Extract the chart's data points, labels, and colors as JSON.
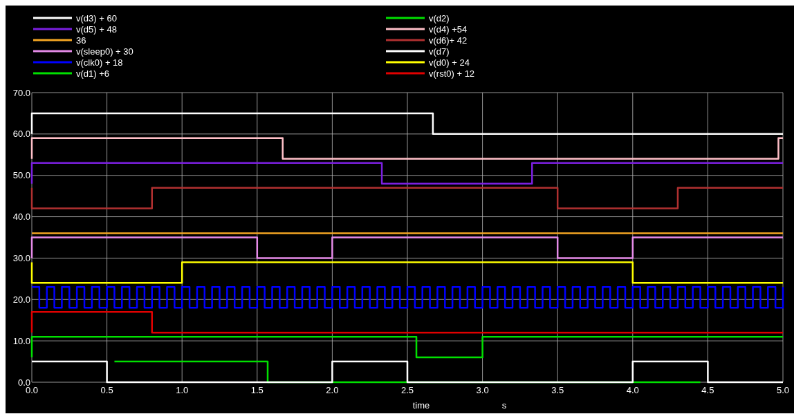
{
  "chart_data": {
    "type": "step",
    "xlabel": "time",
    "annotations": [
      "s"
    ],
    "xlim": [
      0,
      5
    ],
    "xticks": [
      {
        "value": 0,
        "label": "0.0"
      },
      {
        "value": 0.5,
        "label": "0.5"
      },
      {
        "value": 1,
        "label": "1.0"
      },
      {
        "value": 1.5,
        "label": "1.5"
      },
      {
        "value": 2,
        "label": "2.0"
      },
      {
        "value": 2.5,
        "label": "2.5"
      },
      {
        "value": 3,
        "label": "3.0"
      },
      {
        "value": 3.5,
        "label": "3.5"
      },
      {
        "value": 4,
        "label": "4.0"
      },
      {
        "value": 4.5,
        "label": "4.5"
      },
      {
        "value": 5,
        "label": "5.0"
      }
    ],
    "ylim": [
      0,
      70
    ],
    "yticks": [
      {
        "value": 0,
        "label": "0.0"
      },
      {
        "value": 10,
        "label": "10.0"
      },
      {
        "value": 20,
        "label": "20.0"
      },
      {
        "value": 30,
        "label": "30.0"
      },
      {
        "value": 40,
        "label": "40.0"
      },
      {
        "value": 50,
        "label": "50.0"
      },
      {
        "value": 60,
        "label": "60.0"
      },
      {
        "value": 70,
        "label": "70.0"
      }
    ],
    "grid": true,
    "legend": "top",
    "marker": "none",
    "line_style": "solid",
    "series": [
      {
        "name": "v(d3) + 60",
        "color": "#ffffff",
        "x": [
          0,
          0,
          2.67,
          5
        ],
        "values": [
          60,
          65,
          60,
          60
        ]
      },
      {
        "name": "v(d5) + 48",
        "color": "#7b1fe0",
        "x": [
          0,
          0,
          2.33,
          3.33,
          5
        ],
        "values": [
          48,
          53,
          48,
          53,
          53
        ]
      },
      {
        "name": "36",
        "color": "#f5a623",
        "x": [
          0,
          5
        ],
        "values": [
          36,
          36
        ]
      },
      {
        "name": "v(sleep0) + 30",
        "color": "#e58be8",
        "x": [
          0,
          0,
          1.5,
          2,
          3.5,
          4,
          5
        ],
        "values": [
          30,
          35,
          30,
          35,
          30,
          35,
          35
        ]
      },
      {
        "name": "v(clk0) + 18",
        "color": "#0000ff",
        "x": [
          0,
          0.05,
          0.1,
          0.15,
          0.2,
          0.25,
          0.3,
          0.35,
          0.4,
          0.45,
          0.5,
          0.55,
          0.6,
          0.65,
          0.7,
          0.75,
          0.8,
          0.85,
          0.9,
          0.95,
          1,
          1.05,
          1.1,
          1.15,
          1.2,
          1.25,
          1.3,
          1.35,
          1.4,
          1.45,
          1.5,
          1.55,
          1.6,
          1.65,
          1.7,
          1.75,
          1.8,
          1.85,
          1.9,
          1.95,
          2,
          2.05,
          2.1,
          2.15,
          2.2,
          2.25,
          2.3,
          2.35,
          2.4,
          2.45,
          2.5,
          2.55,
          2.6,
          2.65,
          2.7,
          2.75,
          2.8,
          2.85,
          2.9,
          2.95,
          3,
          3.05,
          3.1,
          3.15,
          3.2,
          3.25,
          3.3,
          3.35,
          3.4,
          3.45,
          3.5,
          3.55,
          3.6,
          3.65,
          3.7,
          3.75,
          3.8,
          3.85,
          3.9,
          3.95,
          4,
          4.05,
          4.1,
          4.15,
          4.2,
          4.25,
          4.3,
          4.35,
          4.4,
          4.45,
          4.5,
          4.55,
          4.6,
          4.65,
          4.7,
          4.75,
          4.8,
          4.85,
          4.9,
          4.95,
          5
        ],
        "values": [
          23,
          18,
          23,
          18,
          23,
          18,
          23,
          18,
          23,
          18,
          23,
          18,
          23,
          18,
          23,
          18,
          23,
          18,
          23,
          18,
          23,
          18,
          23,
          18,
          23,
          18,
          23,
          18,
          23,
          18,
          23,
          18,
          23,
          18,
          23,
          18,
          23,
          18,
          23,
          18,
          23,
          18,
          23,
          18,
          23,
          18,
          23,
          18,
          23,
          18,
          23,
          18,
          23,
          18,
          23,
          18,
          23,
          18,
          23,
          18,
          23,
          18,
          23,
          18,
          23,
          18,
          23,
          18,
          23,
          18,
          23,
          18,
          23,
          18,
          23,
          18,
          23,
          18,
          23,
          18,
          23,
          18,
          23,
          18,
          23,
          18,
          23,
          18,
          23,
          18,
          23,
          18,
          23,
          18,
          23,
          18,
          23,
          18,
          23,
          18,
          23
        ]
      },
      {
        "name": "v(d1) +6",
        "color": "#00e000",
        "x": [
          0,
          0,
          2.56,
          3,
          5
        ],
        "values": [
          6,
          11,
          6,
          11,
          11
        ]
      },
      {
        "name": "v(d2)",
        "color": "#00e000",
        "x": [
          0.55,
          1.57,
          2.25,
          4.45
        ],
        "values": [
          5,
          0,
          0,
          0
        ]
      },
      {
        "name": "v(d4) +54",
        "color": "#ffc0c8",
        "x": [
          0,
          0,
          1.67,
          4.97,
          5
        ],
        "values": [
          54,
          59,
          54,
          59,
          59
        ]
      },
      {
        "name": "v(d6)+ 42",
        "color": "#b03030",
        "x": [
          0,
          0,
          0.8,
          3.5,
          4.3,
          5
        ],
        "values": [
          47,
          42,
          47,
          42,
          47,
          47
        ]
      },
      {
        "name": "v(d7)",
        "color": "#ffffff",
        "x": [
          0,
          0.5,
          2,
          2.5,
          4,
          4.5,
          5
        ],
        "values": [
          5,
          0,
          5,
          0,
          5,
          0,
          0
        ]
      },
      {
        "name": "v(d0) + 24",
        "color": "#ffff00",
        "x": [
          0,
          0,
          1,
          4,
          5
        ],
        "values": [
          29,
          24,
          29,
          24,
          24
        ]
      },
      {
        "name": "v(rst0) + 12",
        "color": "#e00000",
        "x": [
          0,
          0,
          0.8,
          5
        ],
        "values": [
          12,
          17,
          12,
          12
        ]
      }
    ]
  }
}
